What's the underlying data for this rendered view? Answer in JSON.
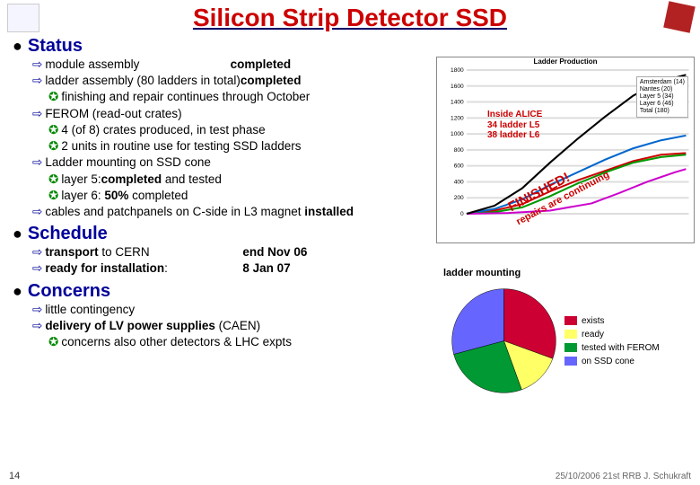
{
  "title": "Silicon Strip Detector SSD",
  "sections": {
    "status": {
      "header": "Status",
      "items": [
        {
          "type": "arrow",
          "indent": 1,
          "html": "module assembly",
          "tail": "completed",
          "tail_bold": true
        },
        {
          "type": "arrow",
          "indent": 1,
          "html": "ladder assembly (80 ladders in total)",
          "tail": "completed",
          "tail_bold": true
        },
        {
          "type": "star",
          "indent": 2,
          "html": "finishing and repair continues through October"
        },
        {
          "type": "arrow",
          "indent": 1,
          "html": "FEROM (read-out crates)"
        },
        {
          "type": "star",
          "indent": 2,
          "html": "4 (of 8) crates produced, in test phase"
        },
        {
          "type": "star",
          "indent": 2,
          "html": "2 units in routine use for testing SSD ladders"
        },
        {
          "type": "arrow",
          "indent": 1,
          "html": "Ladder mounting on SSD cone"
        },
        {
          "type": "star",
          "indent": 2,
          "html": "layer 5:",
          "tail": "completed",
          "tail_bold": true,
          "tail2": " and tested"
        },
        {
          "type": "star",
          "indent": 2,
          "html": "layer 6: ",
          "tail": "50%",
          "tail_bold": true,
          "tail2": " completed"
        },
        {
          "type": "arrow",
          "indent": 1,
          "html": "cables and patchpanels on C-side in L3 magnet  ",
          "tail": "installed",
          "tail_bold": true
        }
      ]
    },
    "schedule": {
      "header": "Schedule",
      "rows": [
        {
          "left": "transport to CERN",
          "right": "end Nov 06"
        },
        {
          "left": "ready for installation:",
          "right": "8 Jan 07"
        }
      ]
    },
    "concerns": {
      "header": "Concerns",
      "items": [
        {
          "type": "arrow",
          "indent": 1,
          "bold": true,
          "html": "little contingency"
        },
        {
          "type": "arrow",
          "indent": 1,
          "bold": true,
          "html": "delivery of LV power supplies",
          "tail": " (CAEN)"
        },
        {
          "type": "star",
          "indent": 2,
          "html": "concerns also other detectors & LHC expts"
        }
      ]
    }
  },
  "chart": {
    "title": "Ladder Production",
    "legend": [
      "Amsterdam (14)",
      "Nantes (20)",
      "Layer 5 (34)",
      "Layer 6 (46)",
      "Total (180)"
    ],
    "y_max": 1800,
    "inside_alice": {
      "l1": "Inside ALICE",
      "l2": "34 ladder L5",
      "l3": "38 ladder L6"
    },
    "finished": {
      "l1": "FINISHED!",
      "l2": "repairs are continuing"
    },
    "series": {
      "amsterdam": {
        "color": "#cc0000",
        "points": [
          [
            0,
            0
          ],
          [
            20,
            40
          ],
          [
            40,
            120
          ],
          [
            60,
            280
          ],
          [
            80,
            420
          ],
          [
            100,
            540
          ],
          [
            120,
            660
          ],
          [
            140,
            740
          ],
          [
            158,
            760
          ]
        ]
      },
      "nantes": {
        "color": "#0066cc",
        "points": [
          [
            0,
            0
          ],
          [
            20,
            60
          ],
          [
            40,
            180
          ],
          [
            60,
            360
          ],
          [
            80,
            520
          ],
          [
            100,
            680
          ],
          [
            120,
            820
          ],
          [
            140,
            920
          ],
          [
            158,
            980
          ]
        ]
      },
      "layer5": {
        "color": "#009900",
        "points": [
          [
            0,
            0
          ],
          [
            20,
            20
          ],
          [
            40,
            80
          ],
          [
            60,
            220
          ],
          [
            80,
            380
          ],
          [
            100,
            520
          ],
          [
            120,
            640
          ],
          [
            140,
            710
          ],
          [
            158,
            740
          ]
        ]
      },
      "layer6": {
        "color": "#cc00cc",
        "points": [
          [
            0,
            0
          ],
          [
            30,
            10
          ],
          [
            60,
            40
          ],
          [
            90,
            130
          ],
          [
            110,
            260
          ],
          [
            130,
            400
          ],
          [
            150,
            520
          ],
          [
            158,
            560
          ]
        ]
      },
      "total": {
        "color": "#000000",
        "points": [
          [
            0,
            0
          ],
          [
            20,
            100
          ],
          [
            40,
            320
          ],
          [
            60,
            640
          ],
          [
            80,
            940
          ],
          [
            100,
            1220
          ],
          [
            120,
            1480
          ],
          [
            140,
            1660
          ],
          [
            158,
            1740
          ]
        ]
      }
    }
  },
  "pie": {
    "title": "ladder mounting",
    "slices": [
      {
        "label": "exists",
        "color": "#cc0033",
        "size": 110
      },
      {
        "label": "ready",
        "color": "#ffff66",
        "size": 50
      },
      {
        "label": "tested with FEROM",
        "color": "#009933",
        "size": 95
      },
      {
        "label": "on SSD cone",
        "color": "#6666ff",
        "size": 105
      }
    ]
  },
  "footer": {
    "page": "14",
    "right": "25/10/2006 21st RRB J. Schukraft"
  }
}
